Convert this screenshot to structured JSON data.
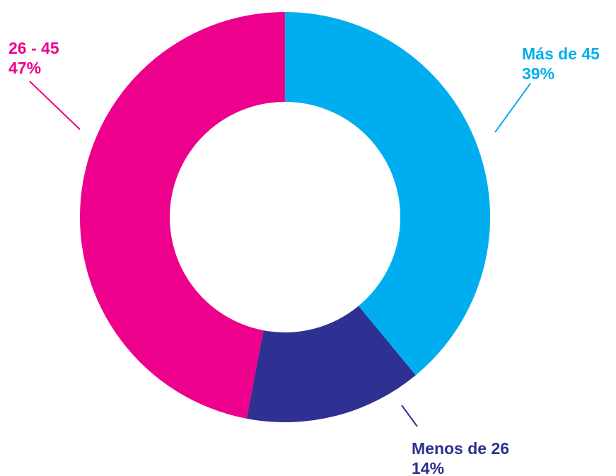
{
  "chart_data": {
    "type": "donut",
    "categories": [
      "Más de 45",
      "Menos de 26",
      "26 - 45"
    ],
    "values": [
      39,
      14,
      47
    ],
    "value_labels": [
      "39%",
      "14%",
      "47%"
    ],
    "colors": [
      "#00aeef",
      "#2e3192",
      "#ec008c"
    ]
  }
}
